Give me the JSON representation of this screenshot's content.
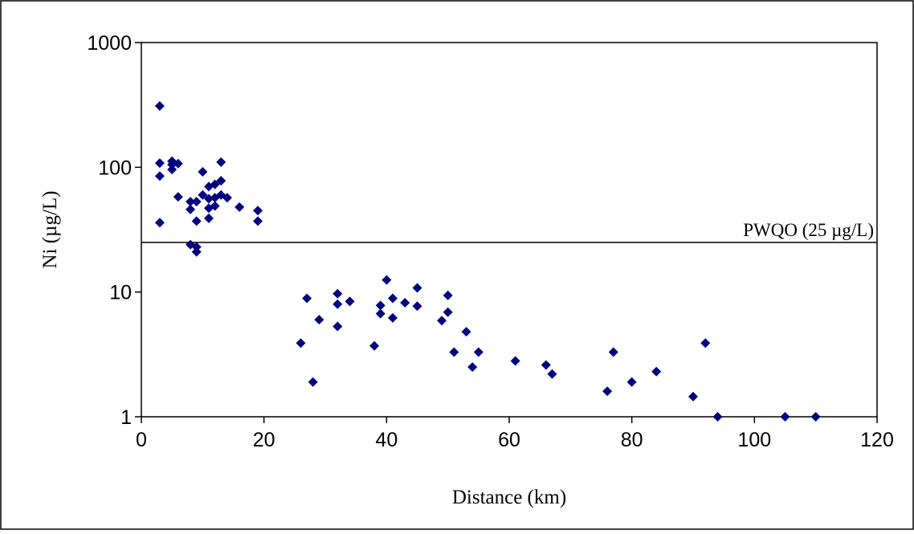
{
  "chart_data": {
    "type": "scatter",
    "xlabel": "Distance (km)",
    "ylabel": "Ni (µg/L)",
    "xlim": [
      0,
      120
    ],
    "ylim": [
      1,
      1000
    ],
    "y_scale": "log",
    "x_ticks": [
      0,
      20,
      40,
      60,
      80,
      100,
      120
    ],
    "y_ticks": [
      1,
      10,
      100,
      1000
    ],
    "x_tick_labels": [
      "0",
      "20",
      "40",
      "60",
      "80",
      "100",
      "120"
    ],
    "y_tick_labels": [
      "1",
      "10",
      "100",
      "1000"
    ],
    "grid": false,
    "legend": "none",
    "marker": "diamond",
    "marker_color": "#000080",
    "reference_line": {
      "label": "PWQO (25 µg/L)",
      "y": 25
    },
    "points": [
      [
        3,
        310
      ],
      [
        3,
        108
      ],
      [
        3,
        85
      ],
      [
        3,
        36
      ],
      [
        5,
        112
      ],
      [
        5,
        96
      ],
      [
        5,
        105
      ],
      [
        6,
        107
      ],
      [
        6,
        58
      ],
      [
        8,
        53
      ],
      [
        8,
        46
      ],
      [
        8,
        24
      ],
      [
        9,
        23
      ],
      [
        9,
        21
      ],
      [
        9,
        37
      ],
      [
        9,
        53
      ],
      [
        10,
        92
      ],
      [
        10,
        60
      ],
      [
        11,
        70
      ],
      [
        11,
        56
      ],
      [
        11,
        47
      ],
      [
        11,
        39
      ],
      [
        12,
        57
      ],
      [
        12,
        73
      ],
      [
        12,
        49
      ],
      [
        13,
        110
      ],
      [
        13,
        78
      ],
      [
        13,
        60
      ],
      [
        14,
        57
      ],
      [
        16,
        48
      ],
      [
        19,
        45
      ],
      [
        19,
        37
      ],
      [
        26,
        3.9
      ],
      [
        27,
        8.9
      ],
      [
        28,
        1.9
      ],
      [
        29,
        6.0
      ],
      [
        32,
        9.7
      ],
      [
        32,
        8.0
      ],
      [
        32,
        5.3
      ],
      [
        34,
        8.4
      ],
      [
        38,
        3.7
      ],
      [
        39,
        7.8
      ],
      [
        39,
        6.7
      ],
      [
        40,
        12.5
      ],
      [
        41,
        8.9
      ],
      [
        41,
        6.2
      ],
      [
        43,
        8.2
      ],
      [
        45,
        10.8
      ],
      [
        45,
        7.7
      ],
      [
        49,
        5.9
      ],
      [
        50,
        9.4
      ],
      [
        50,
        6.9
      ],
      [
        51,
        3.3
      ],
      [
        53,
        4.8
      ],
      [
        54,
        2.5
      ],
      [
        55,
        3.3
      ],
      [
        61,
        2.8
      ],
      [
        66,
        2.6
      ],
      [
        67,
        2.2
      ],
      [
        76,
        1.6
      ],
      [
        77,
        3.3
      ],
      [
        80,
        1.9
      ],
      [
        84,
        2.3
      ],
      [
        90,
        1.45
      ],
      [
        92,
        3.9
      ],
      [
        94,
        1.0
      ],
      [
        105,
        1.0
      ],
      [
        110,
        1.0
      ]
    ]
  }
}
